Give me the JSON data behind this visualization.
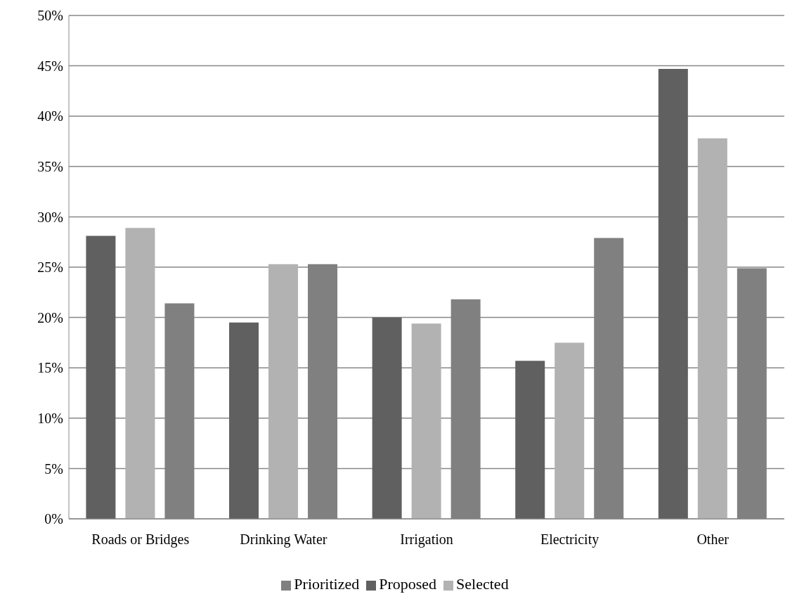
{
  "chart_data": {
    "type": "bar",
    "categories": [
      "Roads or Bridges",
      "Drinking Water",
      "Irrigation",
      "Electricity",
      "Other"
    ],
    "series": [
      {
        "name": "Proposed",
        "color": "#606060",
        "values": [
          28.1,
          19.5,
          20.0,
          15.7,
          44.7
        ]
      },
      {
        "name": "Selected",
        "color": "#b2b2b2",
        "values": [
          28.9,
          25.3,
          19.4,
          17.5,
          37.8
        ]
      },
      {
        "name": "Prioritized",
        "color": "#808080",
        "values": [
          21.4,
          25.3,
          21.8,
          27.9,
          24.9
        ]
      }
    ],
    "ylim": [
      0,
      50
    ],
    "yticks": [
      {
        "value": 0,
        "label": "0%"
      },
      {
        "value": 5,
        "label": "5%"
      },
      {
        "value": 10,
        "label": "10%"
      },
      {
        "value": 15,
        "label": "15%"
      },
      {
        "value": 20,
        "label": "20%"
      },
      {
        "value": 25,
        "label": "25%"
      },
      {
        "value": 30,
        "label": "30%"
      },
      {
        "value": 35,
        "label": "35%"
      },
      {
        "value": 40,
        "label": "40%"
      },
      {
        "value": 45,
        "label": "45%"
      },
      {
        "value": 50,
        "label": "50%"
      }
    ],
    "grid": "y",
    "legend": "bottom"
  }
}
